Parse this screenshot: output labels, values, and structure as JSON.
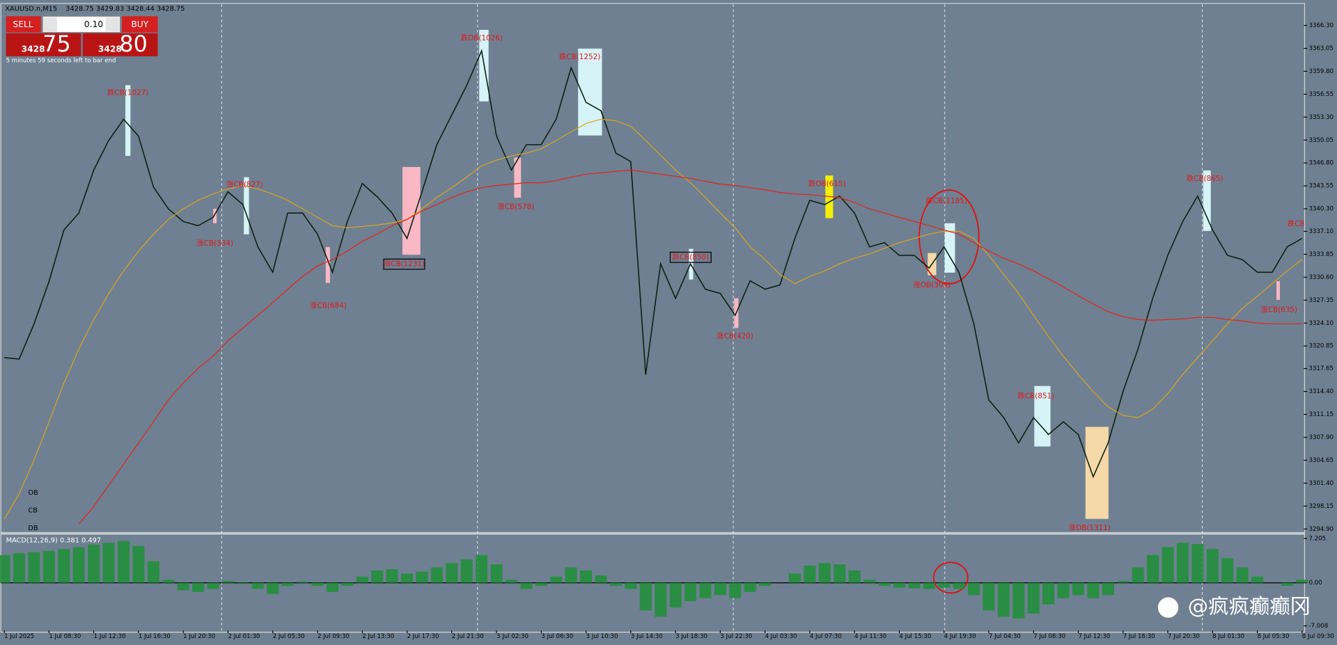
{
  "header": {
    "symbol": "XAUUSD.n,M15",
    "quote": "3428.75 3429.83 3428.44 3428.75"
  },
  "trade_panel": {
    "sell": "SELL",
    "buy": "BUY",
    "lot": "0.10",
    "bid_big": "3428",
    "bid_small": "75",
    "ask_big": "3428",
    "ask_small": "80",
    "timer": "5 minutes 59 seconds left to bar end"
  },
  "legend_labels": [
    "OB",
    "CB",
    "DB"
  ],
  "annotations": [
    "跌CB(1027)",
    "涨CB(827)",
    "涨CB(334)",
    "涨CB(684)",
    "涨CB(1231)",
    "跌DB(1026)",
    "涨CB(578)",
    "跌CB(1252)",
    "跌CB(850)",
    "涨CB(420)",
    "跌OB(615)",
    "跌CB(1185)",
    "涨OB(309)",
    "跌CB(851)",
    "涨DB(1311)",
    "跌CB(865)",
    "涨CB(635)",
    "跌CB"
  ],
  "watermark": "@疯疯癫癫冈",
  "chart_data": [
    {
      "type": "line",
      "categories": [
        "1 Jul 2025",
        null,
        null,
        "1 Jul 08:30",
        null,
        null,
        "1 Jul 12:30",
        null,
        null,
        "1 Jul 16:30",
        null,
        null,
        "1 Jul 20:30",
        null,
        null,
        "2 Jul 01:30",
        null,
        null,
        "2 Jul 05:30",
        null,
        null,
        "2 Jul 09:30",
        null,
        null,
        "2 Jul 13:30",
        null,
        null,
        "2 Jul 17:30",
        null,
        null,
        "2 Jul 21:30",
        null,
        null,
        "3 Jul 02:30",
        null,
        null,
        "3 Jul 06:30",
        null,
        null,
        "3 Jul 10:30",
        null,
        null,
        "3 Jul 14:30",
        null,
        null,
        "3 Jul 18:30",
        null,
        null,
        "3 Jul 22:30",
        null,
        null,
        "4 Jul 03:30",
        null,
        null,
        "4 Jul 07:30",
        null,
        null,
        "4 Jul 11:30",
        null,
        null,
        "4 Jul 15:30",
        null,
        null,
        "4 Jul 19:30",
        null,
        null,
        "7 Jul 04:30",
        null,
        null,
        "7 Jul 08:30",
        null,
        null,
        "7 Jul 12:30",
        null,
        null,
        "7 Jul 16:30",
        null,
        null,
        "7 Jul 20:30",
        null,
        null,
        "8 Jul 01:30",
        null,
        null,
        "8 Jul 05:30",
        null,
        null,
        "8 Jul 09:30"
      ],
      "series": [
        {
          "color": "#0d1f10",
          "values": [
            3319.2,
            3319.0,
            3324.0,
            3330.0,
            3337.3,
            3339.7,
            3345.8,
            3350.0,
            3353.0,
            3350.6,
            3343.4,
            3340.3,
            3338.5,
            3337.9,
            3339.1,
            3342.7,
            3340.9,
            3334.9,
            3331.3,
            3339.7,
            3339.7,
            3336.7,
            3331.3,
            3338.5,
            3343.9,
            3342.0,
            3339.7,
            3336.1,
            3342.7,
            3349.4,
            3353.6,
            3357.8,
            3362.7,
            3350.6,
            3345.8,
            3349.4,
            3349.4,
            3353.0,
            3360.3,
            3355.4,
            3354.2,
            3348.2,
            3347.0,
            3316.8,
            3332.5,
            3327.6,
            3332.5,
            3328.9,
            3328.3,
            3325.2,
            3330.1,
            3328.9,
            3329.5,
            3336.1,
            3341.5,
            3340.9,
            3342.1,
            3339.7,
            3334.9,
            3335.5,
            3333.7,
            3333.7,
            3331.9,
            3334.9,
            3331.3,
            3324.0,
            3313.2,
            3310.7,
            3307.1,
            3310.7,
            3308.3,
            3310.1,
            3308.3,
            3302.3,
            3307.1,
            3314.4,
            3320.4,
            3327.7,
            3333.7,
            3338.5,
            3342.1,
            3337.3,
            3333.7,
            3333.1,
            3331.3,
            3331.3,
            3334.9,
            3336.1
          ]
        },
        {
          "color": "#d9a520",
          "values": [
            3296.3,
            3299.9,
            3304.7,
            3310.1,
            3315.6,
            3320.4,
            3324.6,
            3328.3,
            3331.5,
            3334.3,
            3336.7,
            3338.8,
            3340.3,
            3341.5,
            3342.4,
            3343.1,
            3343.6,
            3343.1,
            3342.4,
            3341.5,
            3340.3,
            3339.1,
            3337.9,
            3337.6,
            3337.8,
            3338.0,
            3338.3,
            3338.8,
            3340.3,
            3341.9,
            3343.3,
            3344.8,
            3346.4,
            3347.2,
            3347.8,
            3348.2,
            3348.8,
            3350.0,
            3351.2,
            3352.4,
            3353.0,
            3352.8,
            3352.0,
            3350.0,
            3347.9,
            3345.8,
            3344.0,
            3341.9,
            3339.7,
            3337.6,
            3334.9,
            3333.1,
            3331.0,
            3329.7,
            3330.7,
            3331.5,
            3332.5,
            3333.3,
            3333.9,
            3334.7,
            3335.5,
            3336.1,
            3336.7,
            3337.1,
            3337.1,
            3336.1,
            3333.7,
            3331.0,
            3328.3,
            3325.2,
            3322.2,
            3319.4,
            3316.8,
            3314.4,
            3312.2,
            3311.0,
            3310.7,
            3311.9,
            3314.1,
            3316.8,
            3319.2,
            3321.6,
            3324.0,
            3326.2,
            3327.9,
            3329.7,
            3331.5,
            3333.1
          ]
        },
        {
          "color": "#e3241c",
          "values": [
            null,
            null,
            null,
            null,
            null,
            3295.6,
            3298.1,
            3301.1,
            3304.1,
            3307.1,
            3310.1,
            3313.2,
            3315.6,
            3317.7,
            3319.4,
            3321.6,
            3323.4,
            3325.2,
            3327.0,
            3328.9,
            3330.7,
            3332.2,
            3333.1,
            3334.3,
            3335.7,
            3336.7,
            3337.9,
            3338.8,
            3340.0,
            3340.9,
            3341.9,
            3342.7,
            3343.3,
            3343.6,
            3343.8,
            3344.0,
            3344.0,
            3344.3,
            3344.8,
            3345.2,
            3345.4,
            3345.6,
            3345.8,
            3345.5,
            3345.2,
            3344.9,
            3344.6,
            3344.2,
            3343.8,
            3343.6,
            3343.3,
            3343.0,
            3342.6,
            3342.4,
            3342.3,
            3342.1,
            3341.9,
            3341.2,
            3340.3,
            3339.7,
            3339.1,
            3338.5,
            3337.9,
            3337.3,
            3336.7,
            3335.5,
            3334.3,
            3333.3,
            3332.5,
            3331.5,
            3330.4,
            3329.2,
            3328.0,
            3326.8,
            3325.7,
            3325.0,
            3324.6,
            3324.5,
            3324.6,
            3324.7,
            3324.9,
            3324.9,
            3324.6,
            3324.4,
            3324.1,
            3324.0,
            3324.0,
            3324.0
          ]
        }
      ],
      "ylim": [
        3294.4,
        3369.3
      ],
      "yticks": [
        {
          "value": 3366.3,
          "label": "3366.30"
        },
        {
          "value": 3363.05,
          "label": "3363.05"
        },
        {
          "value": 3359.8,
          "label": "3359.80"
        },
        {
          "value": 3356.55,
          "label": "3356.55"
        },
        {
          "value": 3353.3,
          "label": "3353.30"
        },
        {
          "value": 3350.05,
          "label": "3350.05"
        },
        {
          "value": 3346.8,
          "label": "3346.80"
        },
        {
          "value": 3343.55,
          "label": "3343.55"
        },
        {
          "value": 3340.3,
          "label": "3340.30"
        },
        {
          "value": 3337.1,
          "label": "3337.10"
        },
        {
          "value": 3333.85,
          "label": "3333.85"
        },
        {
          "value": 3330.6,
          "label": "3330.60"
        },
        {
          "value": 3327.35,
          "label": "3327.35"
        },
        {
          "value": 3324.1,
          "label": "3324.10"
        },
        {
          "value": 3320.85,
          "label": "3320.85"
        },
        {
          "value": 3317.65,
          "label": "3317.65"
        },
        {
          "value": 3314.4,
          "label": "3314.40"
        },
        {
          "value": 3311.15,
          "label": "3311.15"
        },
        {
          "value": 3307.9,
          "label": "3307.90"
        },
        {
          "value": 3304.65,
          "label": "3304.65"
        },
        {
          "value": 3301.4,
          "label": "3301.40"
        },
        {
          "value": 3298.15,
          "label": "3298.15"
        },
        {
          "value": 3294.9,
          "label": "3294.90"
        }
      ],
      "grid": false
    },
    {
      "type": "bar",
      "title": "MACD(12,26,9) 0.381 0.497",
      "color": "#1e8f36",
      "values": [
        4.5,
        4.8,
        5.0,
        5.2,
        5.5,
        5.8,
        6.2,
        6.5,
        6.8,
        6.0,
        3.5,
        0.5,
        -1.2,
        -1.5,
        -1.0,
        0.3,
        -0.2,
        -1.0,
        -1.8,
        -0.5,
        0.2,
        -0.5,
        -1.5,
        -0.5,
        1.0,
        2.0,
        2.2,
        1.5,
        1.8,
        2.5,
        3.2,
        3.8,
        4.5,
        3.0,
        0.5,
        -1.0,
        -0.5,
        1.0,
        2.5,
        2.0,
        1.2,
        -0.5,
        -1.0,
        -4.5,
        -5.5,
        -4.0,
        -3.0,
        -2.5,
        -2.0,
        -2.5,
        -1.5,
        -0.5,
        0,
        1.5,
        2.8,
        3.2,
        3.0,
        2.0,
        0.5,
        -0.5,
        -0.8,
        -0.9,
        -1.0,
        -0.8,
        -1.0,
        -2.0,
        -4.5,
        -5.5,
        -5.8,
        -5.0,
        -3.5,
        -2.5,
        -2.0,
        -2.5,
        -2.0,
        0.3,
        2.5,
        4.5,
        5.8,
        6.5,
        6.3,
        5.5,
        4.0,
        2.5,
        1.0,
        0,
        -0.5,
        0.5
      ],
      "ylim": [
        -7.48,
        7.76
      ],
      "yticks": [
        7.205,
        {
          "value": 0,
          "label": "0.00"
        },
        -7.008
      ]
    }
  ]
}
